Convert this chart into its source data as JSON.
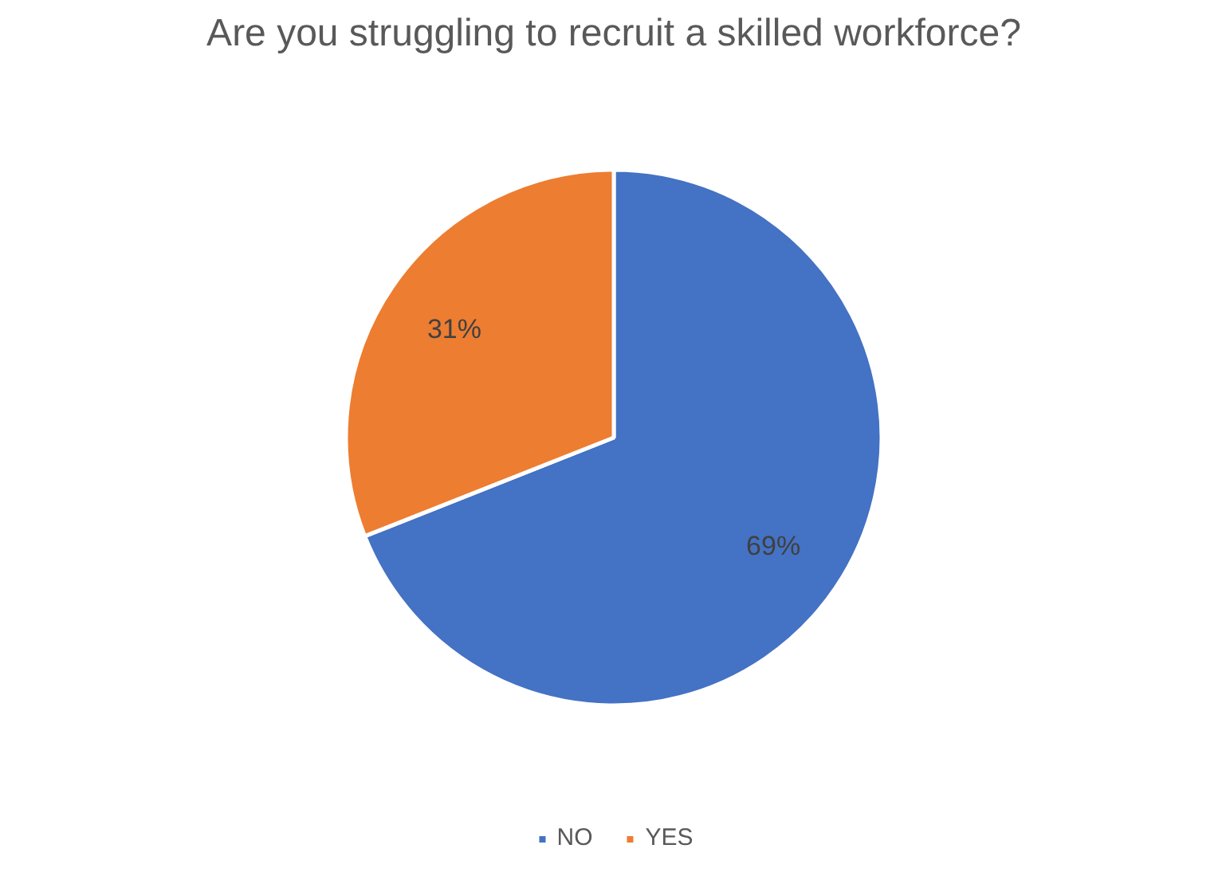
{
  "chart_data": {
    "type": "pie",
    "title": "Are you struggling to recruit a skilled workforce?",
    "categories": [
      "NO",
      "YES"
    ],
    "values": [
      69,
      31
    ],
    "colors": [
      "#4472c4",
      "#ed7d31"
    ],
    "value_labels": [
      "69%",
      "31%"
    ],
    "legend": "bottom"
  }
}
